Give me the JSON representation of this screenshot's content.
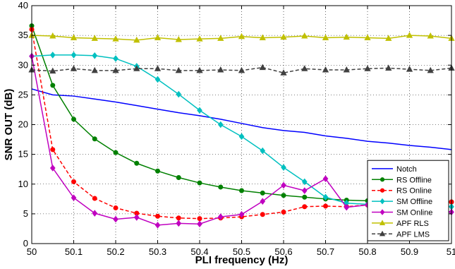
{
  "chart_data": {
    "type": "line",
    "xlabel": "PLI frequency (Hz)",
    "ylabel": "SNR OUT (dB)",
    "xlim": [
      50,
      51
    ],
    "ylim": [
      0,
      40
    ],
    "x_ticks": [
      "50",
      "50.1",
      "50.2",
      "50.3",
      "50.4",
      "50.5",
      "50.6",
      "50.7",
      "50.8",
      "50.9",
      "51"
    ],
    "y_ticks": [
      "0",
      "5",
      "10",
      "15",
      "20",
      "25",
      "30",
      "35",
      "40"
    ],
    "grid": "on, dotted",
    "legend_position": "bottom-right",
    "x": [
      50,
      50.05,
      50.1,
      50.15,
      50.2,
      50.25,
      50.3,
      50.35,
      50.4,
      50.45,
      50.5,
      50.55,
      50.6,
      50.65,
      50.7,
      50.75,
      50.8,
      50.85,
      50.9,
      50.95,
      51
    ],
    "series": [
      {
        "name": "Notch",
        "color": "#0000ff",
        "dash": "solid",
        "marker": "none",
        "values": [
          26.0,
          25.0,
          24.8,
          24.3,
          23.8,
          23.2,
          22.6,
          22.0,
          21.5,
          20.9,
          20.2,
          19.5,
          19.0,
          18.7,
          18.1,
          17.7,
          17.2,
          16.9,
          16.5,
          16.2,
          15.8
        ]
      },
      {
        "name": "RS Offline",
        "color": "#008000",
        "dash": "solid",
        "marker": "circle",
        "values": [
          36.6,
          26.6,
          20.9,
          17.6,
          15.3,
          13.5,
          12.2,
          11.1,
          10.2,
          9.5,
          8.9,
          8.5,
          8.1,
          7.8,
          7.5,
          7.3,
          7.2,
          7.1,
          7.0,
          7.0,
          7.0
        ]
      },
      {
        "name": "RS Online",
        "color": "#ff0000",
        "dash": "dash",
        "marker": "circle",
        "values": [
          36.0,
          15.8,
          10.4,
          7.6,
          6.0,
          5.1,
          4.6,
          4.3,
          4.2,
          4.3,
          4.5,
          4.9,
          5.3,
          6.2,
          6.3,
          6.2,
          6.5,
          6.6,
          6.7,
          6.8,
          7.0
        ]
      },
      {
        "name": "SM Offline",
        "color": "#00c0c0",
        "dash": "solid",
        "marker": "diamond",
        "values": [
          31.5,
          31.7,
          31.7,
          31.6,
          31.1,
          29.8,
          27.6,
          25.1,
          22.4,
          20.0,
          18.0,
          15.6,
          12.8,
          10.4,
          7.8,
          6.8,
          6.6,
          6.6,
          6.6,
          6.5,
          6.2
        ]
      },
      {
        "name": "SM Online",
        "color": "#c000c0",
        "dash": "solid",
        "marker": "diamond",
        "values": [
          31.5,
          12.7,
          7.7,
          5.1,
          4.1,
          4.4,
          3.1,
          3.4,
          3.3,
          4.5,
          4.9,
          7.1,
          9.8,
          8.9,
          10.9,
          6.1,
          6.5,
          6.4,
          6.1,
          5.9,
          5.3
        ]
      },
      {
        "name": "APF RLS",
        "color": "#c0c000",
        "dash": "solid",
        "marker": "triangle",
        "values": [
          35.0,
          34.9,
          34.6,
          34.5,
          34.4,
          34.2,
          34.6,
          34.3,
          34.4,
          34.5,
          34.8,
          34.6,
          34.7,
          34.9,
          34.6,
          34.7,
          34.6,
          34.5,
          35.0,
          34.9,
          34.5
        ]
      },
      {
        "name": "APF LMS",
        "color": "#404040",
        "dash": "dash",
        "marker": "triangle",
        "values": [
          29.2,
          29.0,
          29.4,
          29.1,
          29.1,
          29.4,
          29.4,
          29.1,
          29.1,
          29.2,
          29.1,
          29.6,
          28.7,
          29.4,
          29.2,
          29.2,
          29.4,
          29.5,
          29.3,
          29.1,
          29.5
        ]
      }
    ]
  }
}
